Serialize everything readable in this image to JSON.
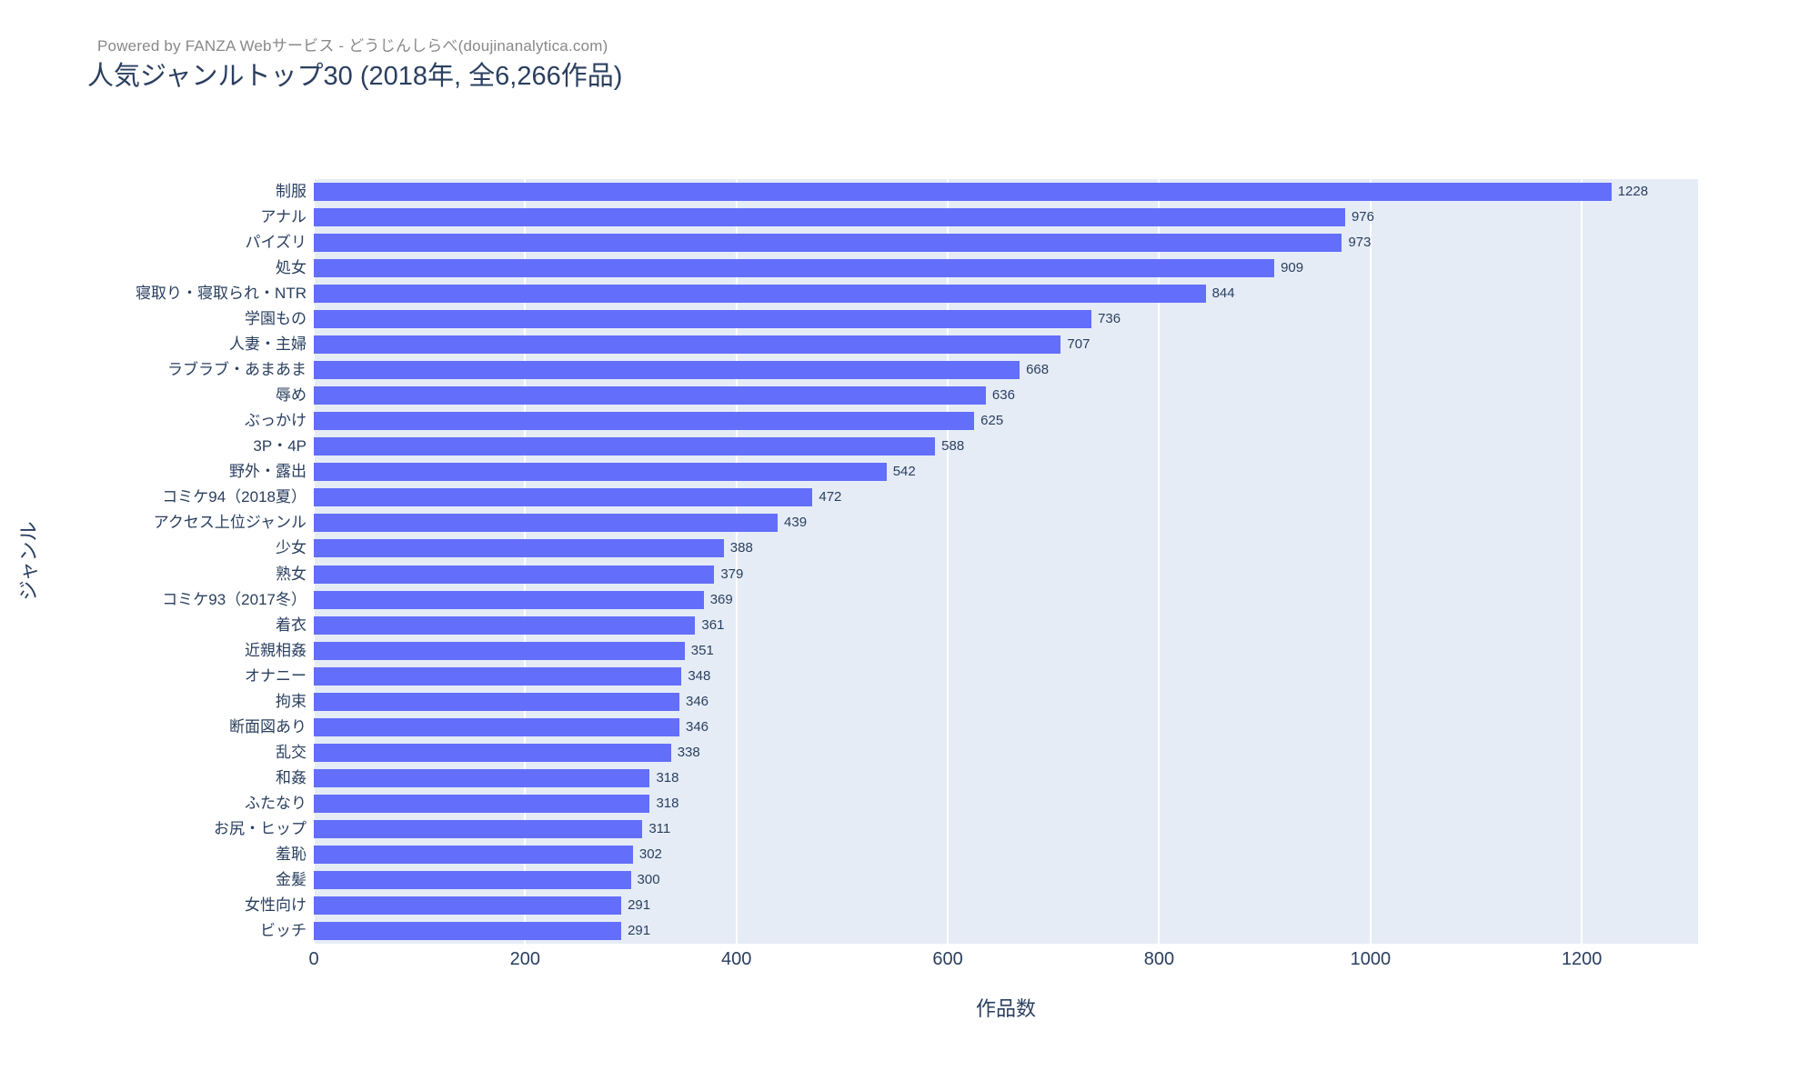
{
  "annotation": "Powered by FANZA Webサービス - どうじんしらべ(doujinanalytica.com)",
  "chart_data": {
    "type": "bar",
    "orientation": "horizontal",
    "title": "人気ジャンルトップ30 (2018年, 全6,266作品)",
    "xlabel": "作品数",
    "ylabel": "ジャンル",
    "xlim": [
      0,
      1310
    ],
    "xticks": [
      0,
      200,
      400,
      600,
      800,
      1000,
      1200
    ],
    "grid": true,
    "value_labels_shown": true,
    "categories": [
      "制服",
      "アナル",
      "パイズリ",
      "処女",
      "寝取り・寝取られ・NTR",
      "学園もの",
      "人妻・主婦",
      "ラブラブ・あまあま",
      "辱め",
      "ぶっかけ",
      "3P・4P",
      "野外・露出",
      "コミケ94（2018夏）",
      "アクセス上位ジャンル",
      "少女",
      "熟女",
      "コミケ93（2017冬）",
      "着衣",
      "近親相姦",
      "オナニー",
      "拘束",
      "断面図あり",
      "乱交",
      "和姦",
      "ふたなり",
      "お尻・ヒップ",
      "羞恥",
      "金髪",
      "女性向け",
      "ビッチ"
    ],
    "values": [
      1228,
      976,
      973,
      909,
      844,
      736,
      707,
      668,
      636,
      625,
      588,
      542,
      472,
      439,
      388,
      379,
      369,
      361,
      351,
      348,
      346,
      346,
      338,
      318,
      318,
      311,
      302,
      300,
      291,
      291
    ],
    "colors": {
      "bar": "#636efa",
      "plot_background": "#e5ecf6",
      "gridline": "#ffffff",
      "text": "#2a3f5f",
      "annotation_text": "#888888"
    }
  }
}
